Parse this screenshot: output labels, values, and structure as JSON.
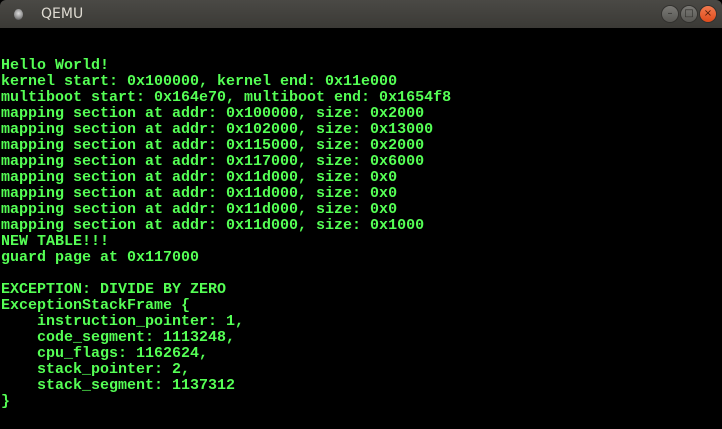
{
  "window": {
    "title": "QEMU",
    "icons": [
      "app-icon",
      "minimize-icon",
      "maximize-icon",
      "close-icon"
    ]
  },
  "colors": {
    "text": "#55ff55",
    "background": "#000000",
    "titlebar": "#3c3b37",
    "close": "#e8572a"
  },
  "console": {
    "lines": [
      "Hello World!",
      "kernel start: 0x100000, kernel end: 0x11e000",
      "multiboot start: 0x164e70, multiboot end: 0x1654f8",
      "mapping section at addr: 0x100000, size: 0x2000",
      "mapping section at addr: 0x102000, size: 0x13000",
      "mapping section at addr: 0x115000, size: 0x2000",
      "mapping section at addr: 0x117000, size: 0x6000",
      "mapping section at addr: 0x11d000, size: 0x0",
      "mapping section at addr: 0x11d000, size: 0x0",
      "mapping section at addr: 0x11d000, size: 0x0",
      "mapping section at addr: 0x11d000, size: 0x1000",
      "NEW TABLE!!!",
      "guard page at 0x117000",
      "",
      "EXCEPTION: DIVIDE BY ZERO",
      "ExceptionStackFrame {",
      "    instruction_pointer: 1,",
      "    code_segment: 1113248,",
      "    cpu_flags: 1162624,",
      "    stack_pointer: 2,",
      "    stack_segment: 1137312",
      "}"
    ]
  }
}
